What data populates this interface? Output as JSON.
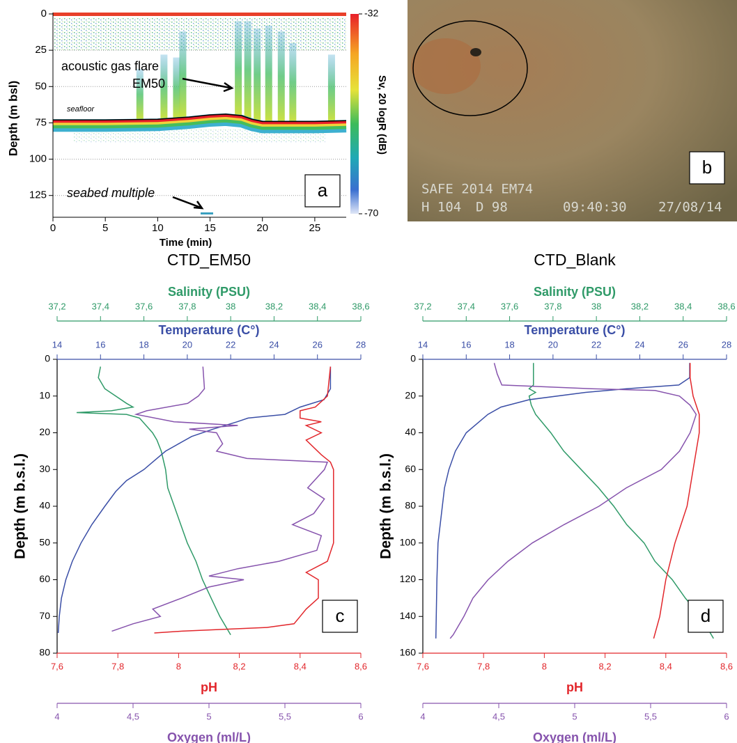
{
  "chart_data": [
    {
      "type": "echogram",
      "ylabel": "Depth (m bsl)",
      "xlabel": "Time (min)",
      "xlim": [
        0,
        28
      ],
      "xticks": [
        0,
        5,
        10,
        15,
        20,
        25
      ],
      "ylim": [
        0,
        140
      ],
      "yticks": [
        0,
        25,
        50,
        75,
        100,
        125
      ],
      "grid": true,
      "colorbar": {
        "label": "Sv, 20 logR (dB)",
        "lim": [
          -70,
          -32
        ],
        "ticks": [
          -70,
          -32
        ]
      },
      "seafloor": {
        "x": [
          0,
          5,
          10,
          13,
          15,
          16.5,
          18,
          19,
          20,
          25,
          28
        ],
        "values": [
          73,
          73,
          72.5,
          71,
          69.5,
          69,
          70,
          72.5,
          74,
          74,
          73.5
        ]
      },
      "flares": {
        "x": [
          8.3,
          10.6,
          11.8,
          12.4,
          17.7,
          18.6,
          19.5,
          20.6,
          21.8,
          22.9,
          26.6
        ],
        "values": [
          38,
          28,
          30,
          12,
          5,
          5,
          10,
          8,
          12,
          20,
          28
        ]
      },
      "annotations": [
        "acoustic gas flare",
        "EM50",
        "seafloor",
        "seabed multiple"
      ],
      "panel_label": "a"
    },
    {
      "type": "photo",
      "overlay": [
        "SAFE 2014 EM74",
        "H 104",
        "D 98",
        "09:40:30",
        "27/08/14"
      ],
      "panel_label": "b"
    },
    {
      "type": "profile",
      "title": "CTD_EM50",
      "ylabel": "Depth (m b.s.l.)",
      "ylim": [
        0,
        80
      ],
      "yticks": [
        0,
        10,
        20,
        30,
        40,
        50,
        60,
        70,
        80
      ],
      "panel_label": "c",
      "axes": [
        {
          "label": "Salinity (PSU)",
          "color": "#2f9a68",
          "position": "top",
          "xlim": [
            37.2,
            38.6
          ],
          "xticks": [
            {
              "value": 37.2,
              "label": "37,2"
            },
            {
              "value": 37.4,
              "label": "37,4"
            },
            {
              "value": 37.6,
              "label": "37,6"
            },
            {
              "value": 37.8,
              "label": "37,8"
            },
            38,
            {
              "value": 38.2,
              "label": "38,2"
            },
            {
              "value": 38.4,
              "label": "38,4"
            },
            {
              "value": 38.6,
              "label": "38,6"
            }
          ],
          "depth": [
            2,
            5,
            8,
            10,
            12,
            13,
            14,
            14.5,
            15,
            16,
            18,
            20,
            22,
            25,
            30,
            35,
            40,
            45,
            50,
            55,
            60,
            65,
            70,
            75
          ],
          "values": [
            37.4,
            37.39,
            37.42,
            37.47,
            37.52,
            37.55,
            37.45,
            37.29,
            37.52,
            37.58,
            37.61,
            37.64,
            37.66,
            37.68,
            37.7,
            37.71,
            37.74,
            37.77,
            37.8,
            37.84,
            37.87,
            37.91,
            37.95,
            38.0
          ]
        },
        {
          "label": "Temperature  (C°)",
          "color": "#3a4ea6",
          "position": "top",
          "xlim": [
            14,
            28
          ],
          "xticks": [
            14,
            16,
            18,
            20,
            22,
            24,
            26,
            28
          ],
          "depth": [
            2,
            8,
            11,
            13,
            15,
            16,
            17,
            19,
            21,
            23,
            25,
            28,
            30,
            33,
            36,
            40,
            45,
            50,
            55,
            60,
            65,
            70,
            74.5
          ],
          "values": [
            26.6,
            26.6,
            26.3,
            25.2,
            24.5,
            22.8,
            22.3,
            21.2,
            20.2,
            19.6,
            19.0,
            18.4,
            18.0,
            17.2,
            16.7,
            16.2,
            15.6,
            15.1,
            14.7,
            14.4,
            14.2,
            14.1,
            14.05
          ]
        },
        {
          "label": "pH",
          "color": "#e2262b",
          "position": "bottom",
          "xlim": [
            7.6,
            8.6
          ],
          "xticks": [
            {
              "value": 7.6,
              "label": "7,6"
            },
            {
              "value": 7.8,
              "label": "7,8"
            },
            8,
            {
              "value": 8.2,
              "label": "8,2"
            },
            {
              "value": 8.4,
              "label": "8,4"
            },
            {
              "value": 8.6,
              "label": "8,6"
            }
          ],
          "depth": [
            2,
            10,
            13,
            14,
            16,
            17,
            18,
            20,
            22,
            26,
            28,
            30,
            40,
            50,
            55,
            58,
            60,
            65,
            68,
            70,
            72,
            73,
            74,
            74.5
          ],
          "values": [
            8.5,
            8.49,
            8.45,
            8.4,
            8.4,
            8.47,
            8.42,
            8.47,
            8.42,
            8.47,
            8.5,
            8.51,
            8.51,
            8.51,
            8.49,
            8.42,
            8.46,
            8.46,
            8.42,
            8.4,
            8.38,
            8.29,
            8.01,
            7.92
          ]
        },
        {
          "label": "Oxygen (ml/L)",
          "color": "#8653ad",
          "position": "bottom",
          "xlim": [
            4,
            6
          ],
          "xticks": [
            4,
            {
              "value": 4.5,
              "label": "4,5"
            },
            5,
            {
              "value": 5.5,
              "label": "5,5"
            },
            6
          ],
          "depth": [
            2,
            8,
            10,
            12,
            14,
            15,
            17,
            18,
            19,
            20,
            23,
            25,
            27,
            28,
            30,
            35,
            38,
            42,
            45,
            48,
            52,
            55,
            57,
            59,
            60,
            62,
            65,
            68,
            70,
            72,
            74
          ],
          "values": [
            4.96,
            4.97,
            4.93,
            4.86,
            4.59,
            4.52,
            4.77,
            5.19,
            4.87,
            5.05,
            5.09,
            5.05,
            5.25,
            5.78,
            5.76,
            5.65,
            5.76,
            5.69,
            5.55,
            5.74,
            5.71,
            5.46,
            5.19,
            5.0,
            5.23,
            5.0,
            4.82,
            4.63,
            4.68,
            4.5,
            4.36
          ]
        }
      ]
    },
    {
      "type": "profile",
      "title": "CTD_Blank",
      "ylabel": "Depth (m b.s.l.)",
      "ylim": [
        0,
        160
      ],
      "yticks": [
        0,
        20,
        40,
        60,
        80,
        100,
        120,
        140,
        160
      ],
      "panel_label": "d",
      "axes": [
        {
          "label": "Salinity (PSU)",
          "color": "#2f9a68",
          "position": "top",
          "xlim": [
            37.2,
            38.6
          ],
          "xticks": [
            {
              "value": 37.2,
              "label": "37,2"
            },
            {
              "value": 37.4,
              "label": "37,4"
            },
            {
              "value": 37.6,
              "label": "37,6"
            },
            {
              "value": 37.8,
              "label": "37,8"
            },
            38,
            {
              "value": 38.2,
              "label": "38,2"
            },
            {
              "value": 38.4,
              "label": "38,4"
            },
            {
              "value": 38.6,
              "label": "38,6"
            }
          ],
          "depth": [
            2,
            14,
            16,
            18,
            20,
            25,
            30,
            40,
            50,
            60,
            70,
            80,
            90,
            100,
            110,
            120,
            130,
            140,
            150,
            152
          ],
          "values": [
            37.71,
            37.71,
            37.69,
            37.72,
            37.69,
            37.7,
            37.72,
            37.79,
            37.85,
            37.93,
            38.01,
            38.08,
            38.14,
            38.22,
            38.27,
            38.35,
            38.41,
            38.48,
            38.53,
            38.54
          ]
        },
        {
          "label": "Temperature  (C°)",
          "color": "#3a4ea6",
          "position": "top",
          "xlim": [
            14,
            28
          ],
          "xticks": [
            14,
            16,
            18,
            20,
            22,
            24,
            26,
            28
          ],
          "depth": [
            2,
            10,
            14,
            16,
            18,
            22,
            26,
            30,
            40,
            50,
            60,
            70,
            80,
            100,
            120,
            152
          ],
          "values": [
            26.3,
            26.3,
            25.8,
            23.4,
            21.5,
            18.9,
            17.6,
            17.0,
            16.0,
            15.5,
            15.2,
            15.0,
            14.9,
            14.7,
            14.65,
            14.6
          ]
        },
        {
          "label": "pH",
          "color": "#e2262b",
          "position": "bottom",
          "xlim": [
            7.6,
            8.6
          ],
          "xticks": [
            {
              "value": 7.6,
              "label": "7,6"
            },
            {
              "value": 7.8,
              "label": "7,8"
            },
            8,
            {
              "value": 8.2,
              "label": "8,2"
            },
            {
              "value": 8.4,
              "label": "8,4"
            },
            {
              "value": 8.6,
              "label": "8,6"
            }
          ],
          "depth": [
            2,
            10,
            20,
            30,
            40,
            60,
            80,
            100,
            120,
            140,
            152
          ],
          "values": [
            8.48,
            8.48,
            8.49,
            8.51,
            8.51,
            8.49,
            8.47,
            8.43,
            8.4,
            8.38,
            8.36
          ]
        },
        {
          "label": "Oxygen (ml/L)",
          "color": "#8653ad",
          "position": "bottom",
          "xlim": [
            4,
            6
          ],
          "xticks": [
            4,
            {
              "value": 4.5,
              "label": "4,5"
            },
            5,
            {
              "value": 5.5,
              "label": "5,5"
            },
            6
          ],
          "depth": [
            2,
            8,
            14,
            16,
            17,
            20,
            25,
            30,
            40,
            50,
            60,
            70,
            80,
            90,
            100,
            110,
            120,
            130,
            140,
            150,
            152
          ],
          "values": [
            4.47,
            4.49,
            4.52,
            5.11,
            5.53,
            5.69,
            5.76,
            5.8,
            5.76,
            5.69,
            5.57,
            5.34,
            5.16,
            4.93,
            4.72,
            4.56,
            4.43,
            4.33,
            4.27,
            4.2,
            4.18
          ]
        }
      ]
    }
  ]
}
